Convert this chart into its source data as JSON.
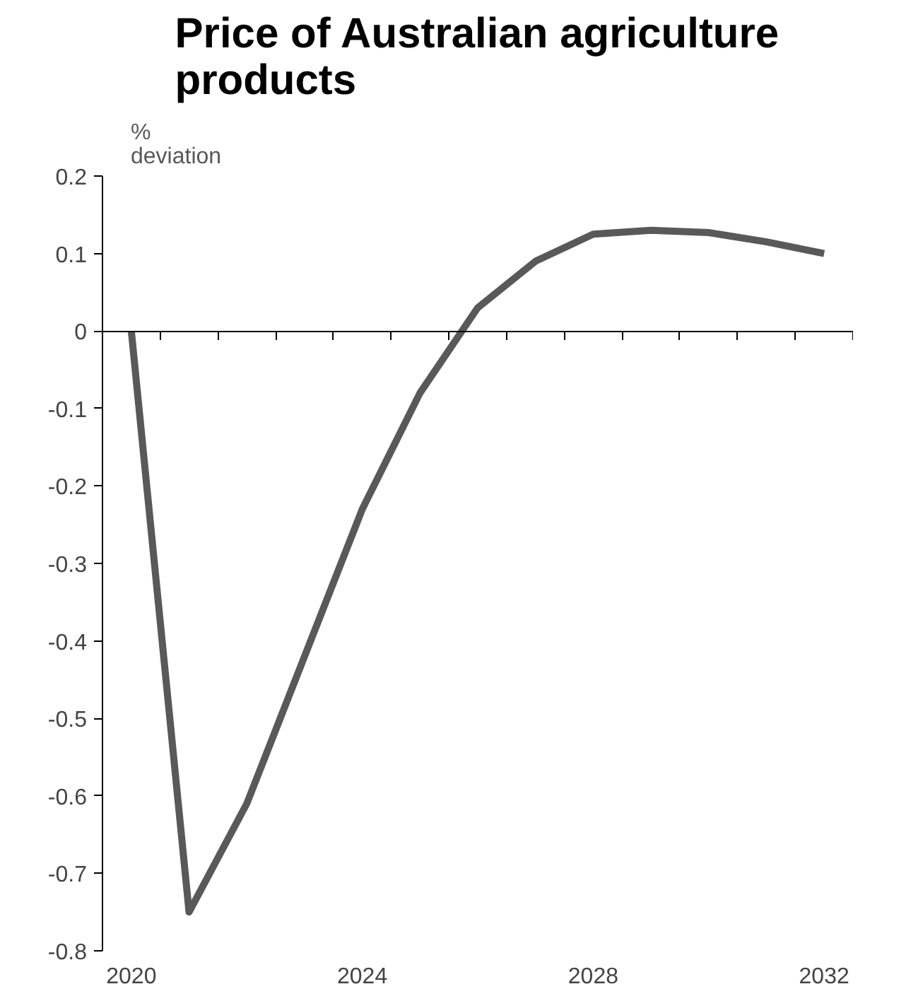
{
  "chart_data": {
    "type": "line",
    "title": "Price of Australian agriculture\nproducts",
    "ylabel": "%\ndeviation",
    "categories": [
      "2020",
      null,
      null,
      null,
      "2024",
      null,
      null,
      null,
      "2028",
      null,
      null,
      null,
      "2032"
    ],
    "series": [
      {
        "color": "#595959",
        "values": [
          0,
          -0.75,
          -0.61,
          -0.42,
          -0.23,
          -0.08,
          0.03,
          0.09,
          0.125,
          0.13,
          0.127,
          0.115,
          0.1
        ]
      }
    ],
    "ylim": [
      -0.8,
      0.2
    ],
    "yticks": [
      -0.8,
      -0.7,
      -0.6,
      -0.5,
      -0.4,
      -0.3,
      -0.2,
      -0.1,
      0,
      0.1,
      0.2
    ],
    "marker": "none",
    "line_style": "solid"
  }
}
